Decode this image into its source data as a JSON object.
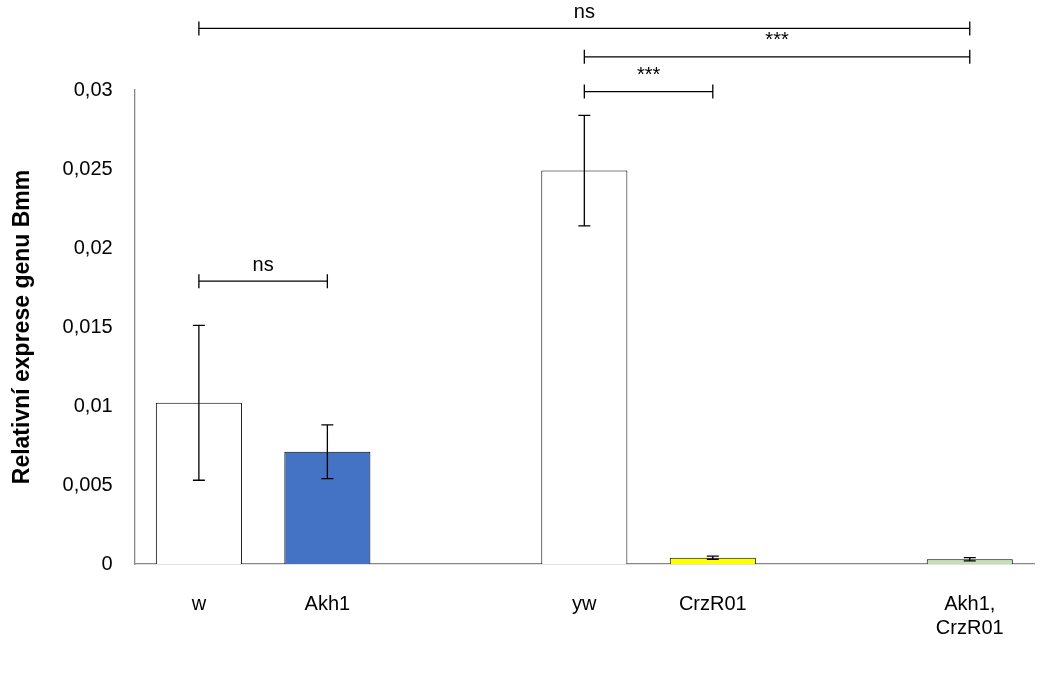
{
  "chart_data": {
    "type": "bar",
    "ylabel": "Relativní exprese genu Bmm",
    "categories": [
      "w",
      "Akh1",
      null,
      "yw",
      "CrzR01",
      null,
      "Akh1, CrzR01"
    ],
    "values": [
      0.0102,
      0.0071,
      null,
      0.0249,
      0.0004,
      null,
      0.0003
    ],
    "errors": [
      0.0049,
      0.0017,
      null,
      0.0035,
      0.0001,
      null,
      0.0001
    ],
    "colors": [
      "#ffffff",
      "#4472c4",
      "#ffffff",
      "#ffffff",
      "#ffff00",
      "#ffffff",
      "#c5e0b4"
    ],
    "ylim": [
      0,
      0.03
    ],
    "yticks": [
      0,
      {
        "value": 0.005,
        "label": "0,005"
      },
      {
        "value": 0.01,
        "label": "0,01"
      },
      {
        "value": 0.015,
        "label": "0,015"
      },
      {
        "value": 0.02,
        "label": "0,02"
      },
      {
        "value": 0.025,
        "label": "0,025"
      },
      {
        "value": 0.03,
        "label": "0,03"
      }
    ],
    "annotations": [
      "ns",
      "***",
      "***",
      "ns"
    ],
    "grid": false,
    "legend": false
  }
}
